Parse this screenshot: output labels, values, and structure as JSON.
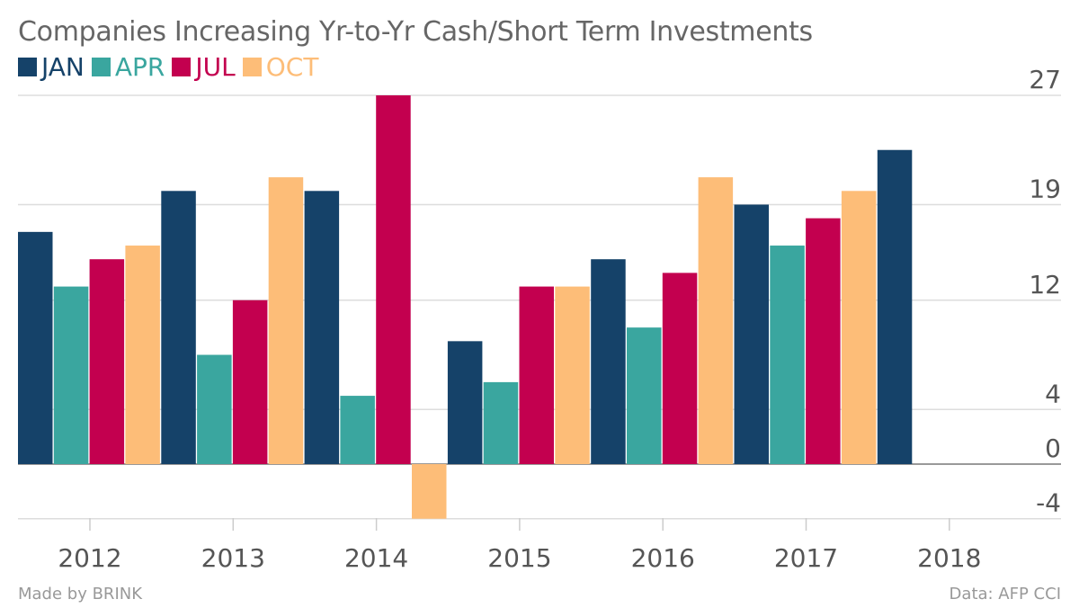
{
  "header": {
    "title": "Companies Increasing Yr-to-Yr Cash/Short Term Investments"
  },
  "footer": {
    "left": "Made by BRINK",
    "right": "Data: AFP CCI"
  },
  "colors": {
    "JAN": "#154269",
    "APR": "#3aa69f",
    "JUL": "#c3004f",
    "OCT": "#fdbd78",
    "grid": "#dddddd",
    "zero": "#999999"
  },
  "chart_data": {
    "type": "bar",
    "title": "Companies Increasing Yr-to-Yr Cash/Short Term Investments",
    "xlabel": "",
    "ylabel": "",
    "categories": [
      "2012",
      "2013",
      "2014",
      "2015",
      "2016",
      "2017",
      "2018"
    ],
    "series": [
      {
        "name": "JAN",
        "values": [
          17,
          20,
          20,
          9,
          15,
          19,
          23
        ]
      },
      {
        "name": "APR",
        "values": [
          13,
          8,
          5,
          6,
          10,
          16,
          null
        ]
      },
      {
        "name": "JUL",
        "values": [
          15,
          12,
          27,
          13,
          14,
          18,
          null
        ]
      },
      {
        "name": "OCT",
        "values": [
          16,
          21,
          -4,
          13,
          21,
          20,
          null
        ]
      }
    ],
    "ylim": [
      -4,
      27
    ],
    "yticks": [
      -4,
      0,
      4,
      12,
      19,
      27
    ],
    "ytick_labels": [
      "-4",
      "0",
      "4",
      "12",
      "19",
      "27"
    ],
    "grid": true,
    "legend": "top-left"
  }
}
